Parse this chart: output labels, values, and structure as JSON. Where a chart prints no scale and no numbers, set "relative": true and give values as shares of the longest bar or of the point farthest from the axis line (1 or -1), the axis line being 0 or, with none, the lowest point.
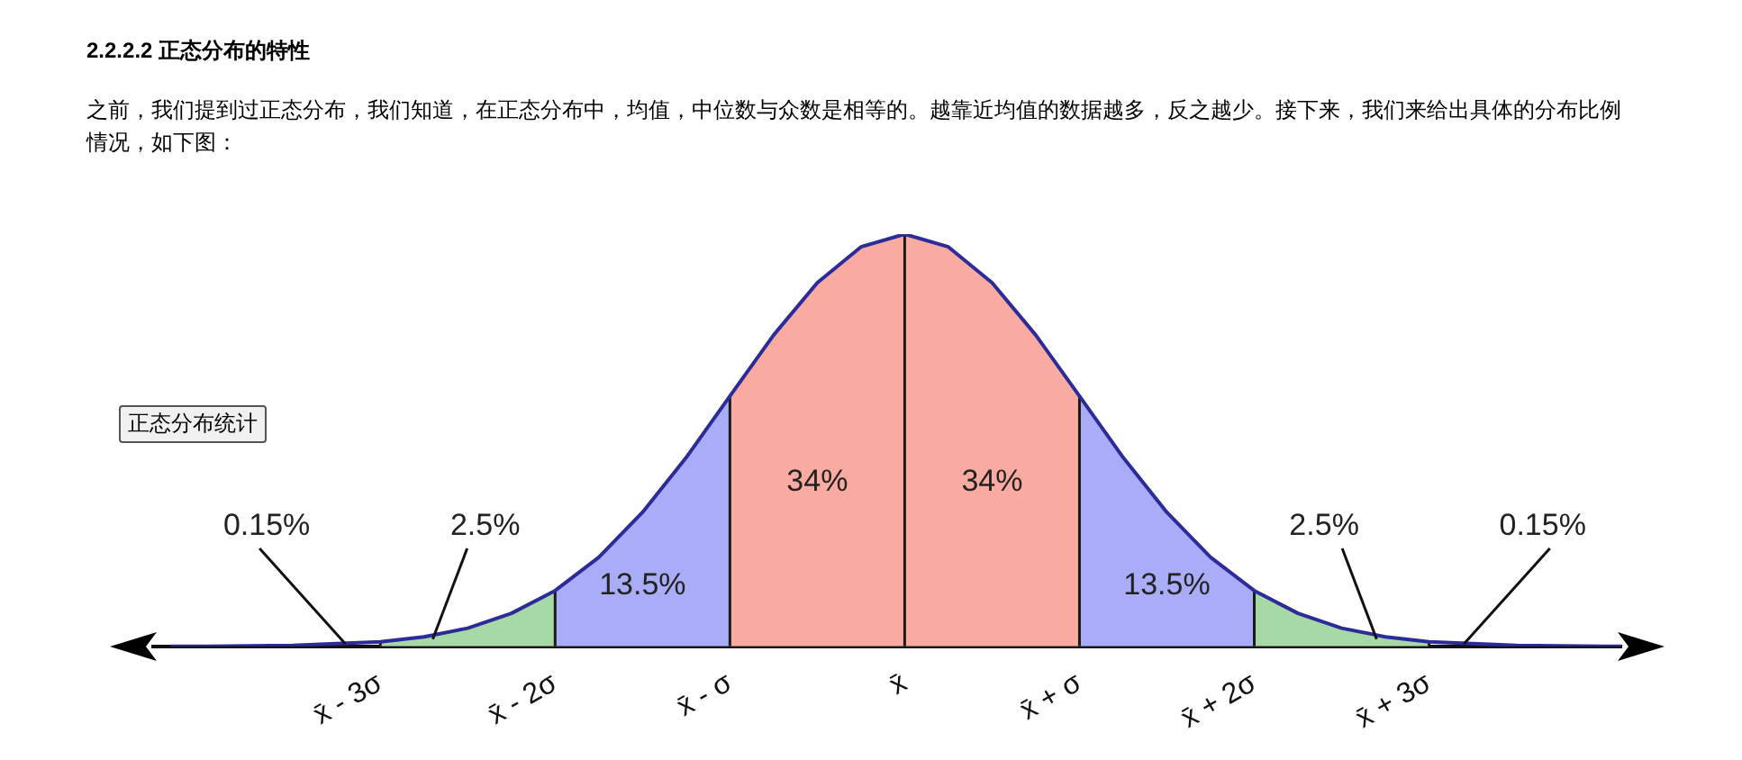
{
  "chart_data": {
    "type": "line",
    "title": "2.2.2.2  正态分布的特性",
    "subtitle": "之前，我们提到过正态分布，我们知道，在正态分布中，均值，中位数与众数是相等的。越靠近均值的数据越多，反之越少。接下来，我们来给出具体的分布比例情况，如下图：",
    "relative": true,
    "x": [
      -4.2,
      -4,
      -3.5,
      -3,
      -2.75,
      -2.5,
      -2.25,
      -2,
      -1.75,
      -1.5,
      -1.25,
      -1,
      -0.75,
      -0.5,
      -0.25,
      0,
      0.25,
      0.5,
      0.75,
      1,
      1.25,
      1.5,
      1.75,
      2,
      2.25,
      2.5,
      2.75,
      3,
      3.5,
      4,
      4.1
    ],
    "series": [
      {
        "color": "#2b2b9a",
        "values": [
          0,
          0,
          0.002,
          0.011,
          0.023,
          0.044,
          0.08,
          0.135,
          0.216,
          0.325,
          0.458,
          0.607,
          0.755,
          0.882,
          0.969,
          1,
          0.969,
          0.882,
          0.755,
          0.607,
          0.458,
          0.325,
          0.216,
          0.135,
          0.08,
          0.044,
          0.023,
          0.011,
          0.002,
          0,
          0
        ]
      }
    ],
    "xlim": [
      -4.3,
      4.1
    ],
    "xticks": [
      {
        "value": -3,
        "label": "x̄ - 3σ"
      },
      {
        "value": -2,
        "label": "x̄ - 2σ"
      },
      {
        "value": -1,
        "label": "x̄ - σ"
      },
      {
        "value": 0,
        "label": "x̄"
      },
      {
        "value": 1,
        "label": "x̄ + σ"
      },
      {
        "value": 2,
        "label": "x̄ + 2σ"
      },
      {
        "value": 3,
        "label": "x̄ + 3σ"
      }
    ],
    "bands": [
      {
        "axis": "x",
        "from": -3,
        "to": -2,
        "label": "2.5%",
        "color": "#a6d9a6"
      },
      {
        "axis": "x",
        "from": -2,
        "to": -1,
        "label": "13.5%",
        "color": "#a9acf7"
      },
      {
        "axis": "x",
        "from": -1,
        "to": 0,
        "label": "34%",
        "color": "#f9aba1"
      },
      {
        "axis": "x",
        "from": 0,
        "to": 1,
        "label": "34%",
        "color": "#f9aba1"
      },
      {
        "axis": "x",
        "from": 1,
        "to": 2,
        "label": "13.5%",
        "color": "#a9acf7"
      },
      {
        "axis": "x",
        "from": 2,
        "to": 3,
        "label": "2.5%",
        "color": "#a6d9a6"
      }
    ],
    "annotations": [
      "正态分布统计",
      {
        "text": "0.15%",
        "x": -3.2,
        "y": 0.006
      },
      {
        "text": "0.15%",
        "x": 3.2,
        "y": 0.006
      }
    ],
    "grid": "x",
    "legend": false,
    "tick_labels": "x",
    "marker": "none",
    "line_style": "solid"
  }
}
